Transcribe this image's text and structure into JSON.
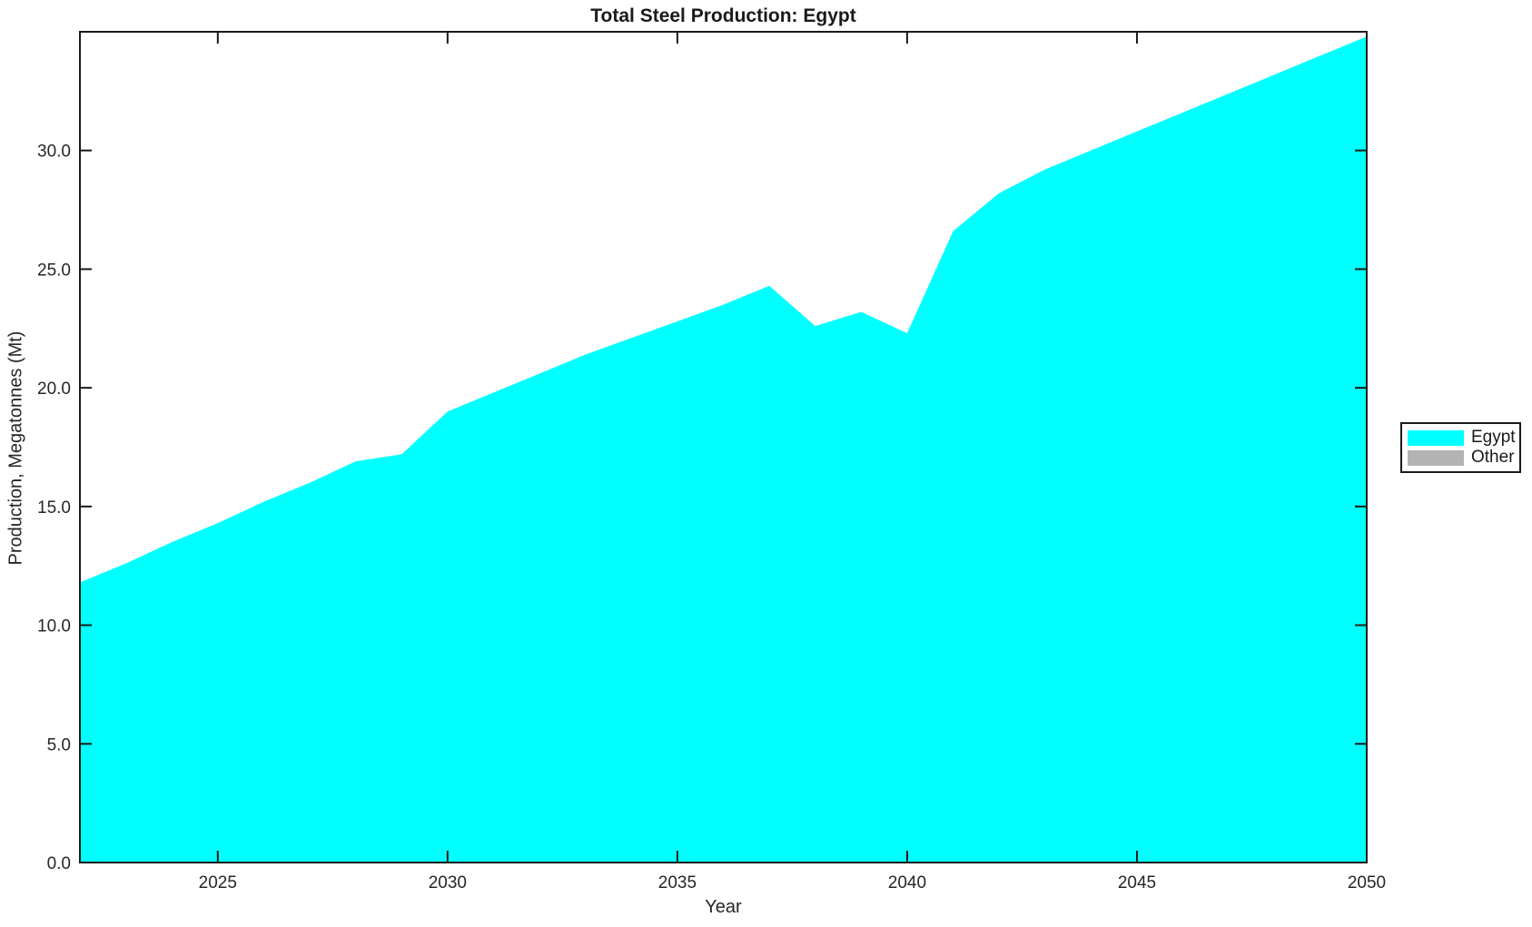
{
  "title": "Total Steel Production: Egypt",
  "colors": {
    "egypt": "#00FFFF",
    "other": "#B3B3B3",
    "axis": "#1A1A1A",
    "background": "#FFFFFF"
  },
  "legend": {
    "items": [
      {
        "label": "Egypt",
        "color": "#00FFFF"
      },
      {
        "label": "Other",
        "color": "#B3B3B3"
      }
    ]
  },
  "chart_data": {
    "type": "area",
    "stacked": true,
    "title": "Total Steel Production: Egypt",
    "xlabel": "Year",
    "ylabel": "Production, Megatonnes (Mt)",
    "xlim": [
      2022,
      2050
    ],
    "ylim": [
      0,
      35
    ],
    "grid": false,
    "legend_position": "right-outside",
    "xticks": {
      "values": [
        2025,
        2030,
        2035,
        2040,
        2045,
        2050
      ],
      "labels": [
        "2025",
        "2030",
        "2035",
        "2040",
        "2045",
        "2050"
      ]
    },
    "yticks": {
      "values": [
        0,
        5,
        10,
        15,
        20,
        25,
        30
      ],
      "labels": [
        "0.0",
        "5.0",
        "10.0",
        "15.0",
        "20.0",
        "25.0",
        "30.0"
      ]
    },
    "x": [
      2022,
      2023,
      2024,
      2025,
      2026,
      2027,
      2028,
      2029,
      2030,
      2031,
      2032,
      2033,
      2034,
      2035,
      2036,
      2037,
      2038,
      2039,
      2040,
      2041,
      2042,
      2043,
      2044,
      2045,
      2046,
      2047,
      2048,
      2049,
      2050
    ],
    "series": [
      {
        "name": "Egypt",
        "color": "#00FFFF",
        "values": [
          11.8,
          12.6,
          13.5,
          14.3,
          15.2,
          16.0,
          16.9,
          17.2,
          19.0,
          19.8,
          20.6,
          21.4,
          22.1,
          22.8,
          23.5,
          24.3,
          22.6,
          23.2,
          22.3,
          26.6,
          28.2,
          29.2,
          30.0,
          30.8,
          31.6,
          32.4,
          33.2,
          34.0,
          34.8
        ]
      },
      {
        "name": "Other",
        "color": "#B3B3B3",
        "values": [
          0,
          0,
          0,
          0,
          0,
          0,
          0,
          0,
          0,
          0,
          0,
          0,
          0,
          0,
          0,
          0,
          0,
          0,
          0,
          0,
          0,
          0,
          0,
          0,
          0,
          0,
          0,
          0,
          0
        ]
      }
    ]
  }
}
